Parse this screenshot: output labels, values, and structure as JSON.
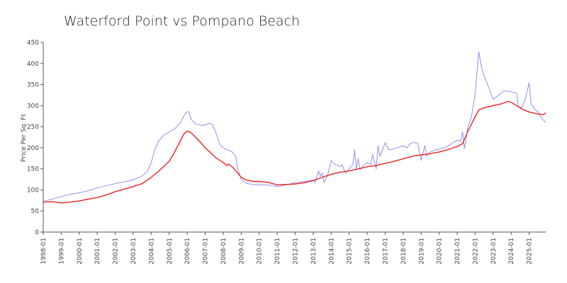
{
  "chart_data": {
    "type": "line",
    "title": "Waterford Point vs Pompano Beach",
    "xlabel": "",
    "ylabel": "Price Per Sq. Ft",
    "ylim": [
      0,
      450
    ],
    "yticks": [
      0,
      50,
      100,
      150,
      200,
      250,
      300,
      350,
      400,
      450
    ],
    "xlim": [
      1998.0,
      2025.92
    ],
    "xticks": [
      "1998-01",
      "1999-01",
      "2000-01",
      "2001-01",
      "2002-01",
      "2003-01",
      "2004-01",
      "2005-01",
      "2006-01",
      "2007-01",
      "2008-01",
      "2009-01",
      "2010-01",
      "2011-01",
      "2012-01",
      "2013-01",
      "2014-01",
      "2015-01",
      "2016-01",
      "2017-01",
      "2018-01",
      "2019-01",
      "2020-01",
      "2021-01",
      "2022-01",
      "2023-01",
      "2024-01",
      "2025-01"
    ],
    "grid": false,
    "legend": "none",
    "series": [
      {
        "color": "#9999ee",
        "points": [
          [
            1998.0,
            73
          ],
          [
            1998.5,
            78
          ],
          [
            1999.0,
            84
          ],
          [
            1999.5,
            90
          ],
          [
            2000.0,
            93
          ],
          [
            2000.5,
            98
          ],
          [
            2001.0,
            105
          ],
          [
            2001.5,
            110
          ],
          [
            2002.0,
            115
          ],
          [
            2002.5,
            119
          ],
          [
            2003.0,
            124
          ],
          [
            2003.5,
            133
          ],
          [
            2003.8,
            145
          ],
          [
            2004.0,
            165
          ],
          [
            2004.2,
            195
          ],
          [
            2004.4,
            215
          ],
          [
            2004.7,
            230
          ],
          [
            2005.0,
            238
          ],
          [
            2005.3,
            245
          ],
          [
            2005.6,
            258
          ],
          [
            2005.8,
            275
          ],
          [
            2006.0,
            286
          ],
          [
            2006.1,
            285
          ],
          [
            2006.2,
            268
          ],
          [
            2006.5,
            256
          ],
          [
            2006.8,
            253
          ],
          [
            2007.0,
            254
          ],
          [
            2007.2,
            258
          ],
          [
            2007.4,
            255
          ],
          [
            2007.6,
            235
          ],
          [
            2007.8,
            208
          ],
          [
            2008.0,
            200
          ],
          [
            2008.2,
            196
          ],
          [
            2008.5,
            190
          ],
          [
            2008.7,
            180
          ],
          [
            2008.8,
            150
          ],
          [
            2009.0,
            125
          ],
          [
            2009.3,
            115
          ],
          [
            2009.7,
            113
          ],
          [
            2010.0,
            112
          ],
          [
            2010.5,
            112
          ],
          [
            2011.0,
            108
          ],
          [
            2011.5,
            112
          ],
          [
            2012.0,
            117
          ],
          [
            2012.5,
            120
          ],
          [
            2013.0,
            123
          ],
          [
            2013.1,
            117
          ],
          [
            2013.3,
            145
          ],
          [
            2013.4,
            132
          ],
          [
            2013.5,
            140
          ],
          [
            2013.6,
            118
          ],
          [
            2013.8,
            135
          ],
          [
            2014.0,
            170
          ],
          [
            2014.2,
            160
          ],
          [
            2014.4,
            158
          ],
          [
            2014.5,
            155
          ],
          [
            2014.6,
            160
          ],
          [
            2014.8,
            140
          ],
          [
            2015.0,
            150
          ],
          [
            2015.2,
            160
          ],
          [
            2015.3,
            195
          ],
          [
            2015.4,
            150
          ],
          [
            2015.5,
            175
          ],
          [
            2015.6,
            148
          ],
          [
            2015.8,
            158
          ],
          [
            2016.0,
            165
          ],
          [
            2016.2,
            160
          ],
          [
            2016.3,
            185
          ],
          [
            2016.5,
            150
          ],
          [
            2016.6,
            205
          ],
          [
            2016.7,
            180
          ],
          [
            2016.9,
            200
          ],
          [
            2017.0,
            212
          ],
          [
            2017.2,
            195
          ],
          [
            2017.5,
            198
          ],
          [
            2017.7,
            200
          ],
          [
            2018.0,
            205
          ],
          [
            2018.2,
            200
          ],
          [
            2018.4,
            210
          ],
          [
            2018.6,
            213
          ],
          [
            2018.8,
            210
          ],
          [
            2019.0,
            170
          ],
          [
            2019.2,
            205
          ],
          [
            2019.3,
            180
          ],
          [
            2019.5,
            190
          ],
          [
            2019.8,
            195
          ],
          [
            2020.0,
            197
          ],
          [
            2020.3,
            200
          ],
          [
            2020.6,
            207
          ],
          [
            2020.8,
            213
          ],
          [
            2021.0,
            218
          ],
          [
            2021.2,
            215
          ],
          [
            2021.3,
            238
          ],
          [
            2021.4,
            198
          ],
          [
            2021.6,
            250
          ],
          [
            2021.8,
            275
          ],
          [
            2022.0,
            330
          ],
          [
            2022.2,
            428
          ],
          [
            2022.35,
            392
          ],
          [
            2022.5,
            370
          ],
          [
            2022.8,
            338
          ],
          [
            2023.0,
            315
          ],
          [
            2023.3,
            325
          ],
          [
            2023.6,
            335
          ],
          [
            2024.0,
            333
          ],
          [
            2024.3,
            330
          ],
          [
            2024.4,
            298
          ],
          [
            2024.6,
            295
          ],
          [
            2024.8,
            318
          ],
          [
            2025.0,
            355
          ],
          [
            2025.1,
            305
          ],
          [
            2025.3,
            292
          ],
          [
            2025.5,
            285
          ],
          [
            2025.7,
            270
          ],
          [
            2025.92,
            260
          ]
        ]
      },
      {
        "color": "#ee2222",
        "points": [
          [
            1998.0,
            71
          ],
          [
            1998.5,
            72
          ],
          [
            1999.0,
            69
          ],
          [
            1999.5,
            71
          ],
          [
            2000.0,
            74
          ],
          [
            2000.5,
            78
          ],
          [
            2001.0,
            82
          ],
          [
            2001.5,
            88
          ],
          [
            2002.0,
            96
          ],
          [
            2002.5,
            102
          ],
          [
            2003.0,
            108
          ],
          [
            2003.5,
            115
          ],
          [
            2004.0,
            130
          ],
          [
            2004.5,
            148
          ],
          [
            2005.0,
            168
          ],
          [
            2005.3,
            190
          ],
          [
            2005.6,
            215
          ],
          [
            2005.8,
            232
          ],
          [
            2006.0,
            240
          ],
          [
            2006.2,
            236
          ],
          [
            2006.5,
            224
          ],
          [
            2006.8,
            210
          ],
          [
            2007.0,
            200
          ],
          [
            2007.3,
            188
          ],
          [
            2007.6,
            176
          ],
          [
            2008.0,
            165
          ],
          [
            2008.2,
            158
          ],
          [
            2008.3,
            161
          ],
          [
            2008.5,
            155
          ],
          [
            2008.8,
            140
          ],
          [
            2009.0,
            130
          ],
          [
            2009.3,
            123
          ],
          [
            2009.7,
            120
          ],
          [
            2010.0,
            120
          ],
          [
            2010.5,
            118
          ],
          [
            2011.0,
            112
          ],
          [
            2011.5,
            113
          ],
          [
            2012.0,
            114
          ],
          [
            2012.5,
            117
          ],
          [
            2013.0,
            122
          ],
          [
            2013.5,
            130
          ],
          [
            2014.0,
            137
          ],
          [
            2014.5,
            142
          ],
          [
            2015.0,
            145
          ],
          [
            2015.5,
            150
          ],
          [
            2016.0,
            155
          ],
          [
            2016.5,
            158
          ],
          [
            2017.0,
            163
          ],
          [
            2017.5,
            168
          ],
          [
            2018.0,
            174
          ],
          [
            2018.5,
            180
          ],
          [
            2019.0,
            183
          ],
          [
            2019.5,
            186
          ],
          [
            2020.0,
            190
          ],
          [
            2020.5,
            196
          ],
          [
            2021.0,
            203
          ],
          [
            2021.3,
            210
          ],
          [
            2021.6,
            240
          ],
          [
            2021.9,
            265
          ],
          [
            2022.2,
            290
          ],
          [
            2022.5,
            295
          ],
          [
            2023.0,
            300
          ],
          [
            2023.5,
            305
          ],
          [
            2023.8,
            310
          ],
          [
            2024.0,
            308
          ],
          [
            2024.3,
            300
          ],
          [
            2024.6,
            292
          ],
          [
            2025.0,
            285
          ],
          [
            2025.5,
            280
          ],
          [
            2025.8,
            279
          ],
          [
            2025.92,
            283
          ]
        ]
      }
    ]
  }
}
